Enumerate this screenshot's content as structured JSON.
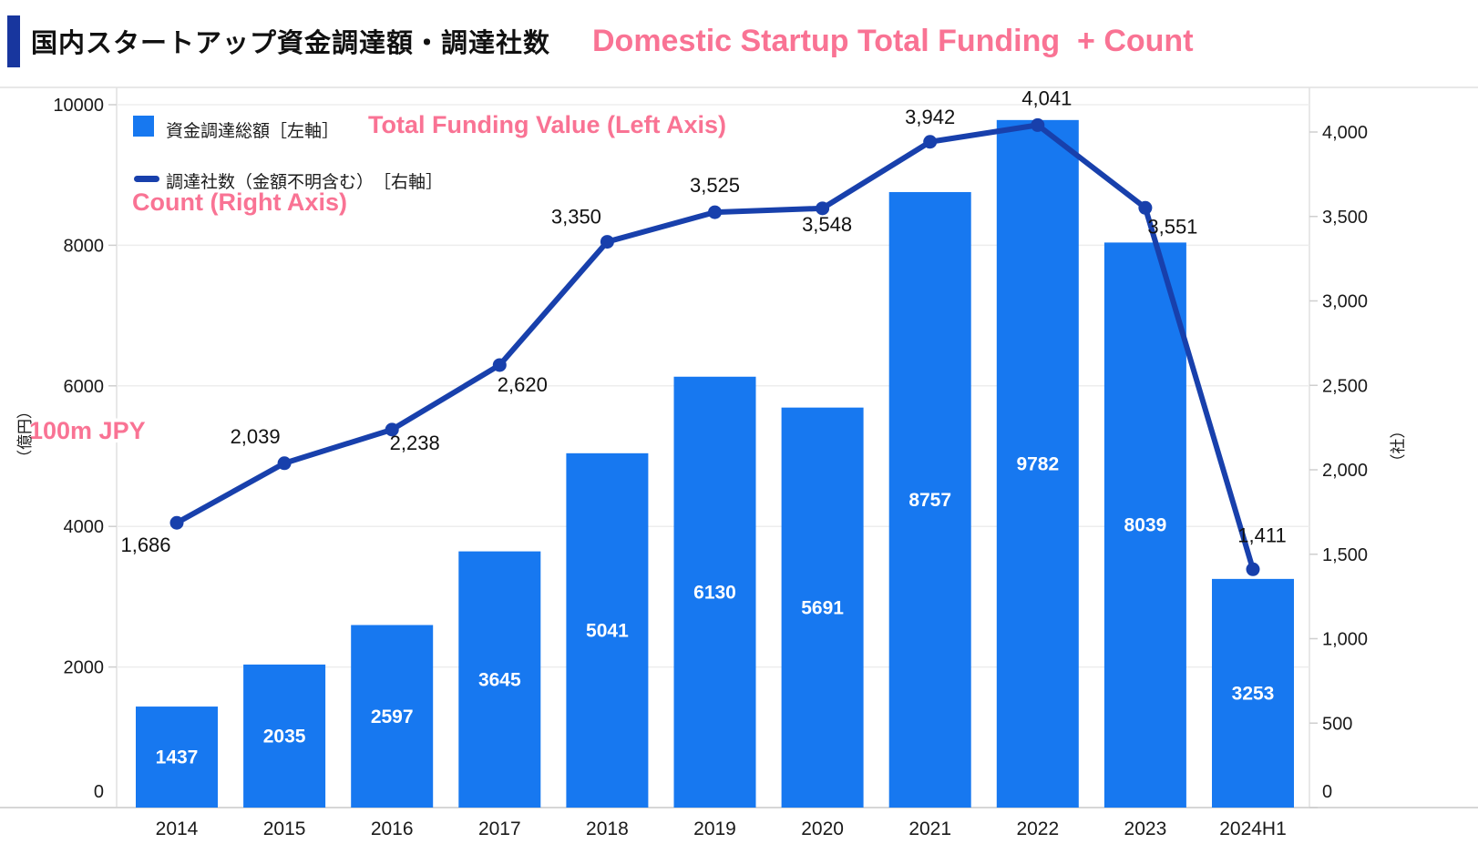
{
  "header": {
    "title_jp": "国内スタートアップ資金調達額・調達社数",
    "title_en": "Domestic Startup Total Funding  + Count"
  },
  "legend": {
    "bar_label_jp": "資金調達総額［左軸］",
    "bar_label_en": "Total Funding Value (Left Axis)",
    "line_label_jp": "調達社数（金額不明含む）　［右軸］",
    "line_label_en": "Count (Right Axis)"
  },
  "axes": {
    "left_unit_jp": "（億円）",
    "left_unit_en": "100m JPY",
    "right_unit_jp": "（社）"
  },
  "colors": {
    "bar": "#1778F0",
    "line": "#1840AC",
    "accent_pink": "#F97394",
    "header_bar": "#18369E",
    "grid": "#ededed",
    "axis_line": "#e0e0e0",
    "baseline": "#d6d6d6",
    "tick": "#cfcfcf",
    "text": "#1a1a1a"
  },
  "chart_data": {
    "type": "bar+line",
    "categories": [
      "2014",
      "2015",
      "2016",
      "2017",
      "2018",
      "2019",
      "2020",
      "2021",
      "2022",
      "2023",
      "2024H1"
    ],
    "series": [
      {
        "name": "資金調達総額［左軸］",
        "type": "bar",
        "axis": "left",
        "values": [
          1437,
          2035,
          2597,
          3645,
          5041,
          6130,
          5691,
          8757,
          9782,
          8039,
          3253
        ]
      },
      {
        "name": "調達社数（金額不明含む）［右軸］",
        "type": "line",
        "axis": "right",
        "values": [
          1686,
          2039,
          2238,
          2620,
          3350,
          3525,
          3548,
          3942,
          4041,
          3551,
          1411
        ],
        "labels": [
          "1,686",
          "2,039",
          "2,238",
          "2,620",
          "3,350",
          "3,525",
          "3,548",
          "3,942",
          "4,041",
          "3,551",
          "1,411"
        ],
        "label_side": [
          "below",
          "above",
          "below",
          "below",
          "above",
          "above",
          "below",
          "above",
          "above",
          "below",
          "above"
        ],
        "label_offsets": [
          [
            -34,
            32
          ],
          [
            -32,
            -22
          ],
          [
            25,
            22
          ],
          [
            25,
            29
          ],
          [
            -34,
            -20
          ],
          [
            0,
            -22
          ],
          [
            5,
            25
          ],
          [
            0,
            -20
          ],
          [
            10,
            -22
          ],
          [
            30,
            28
          ],
          [
            10,
            -30
          ]
        ]
      }
    ],
    "left_axis": {
      "min": 0,
      "max": 10000,
      "ticks": [
        0,
        2000,
        4000,
        6000,
        8000,
        10000
      ],
      "tick_labels": [
        "0",
        "2000",
        "4000",
        "6000",
        "8000",
        "10000"
      ]
    },
    "right_axis": {
      "min": 0,
      "max": 4000,
      "ticks": [
        0,
        500,
        1000,
        1500,
        2000,
        2500,
        3000,
        3500,
        4000
      ],
      "tick_labels": [
        "0",
        "500",
        "1,000",
        "1,500",
        "2,000",
        "2,500",
        "3,000",
        "3,500",
        "4,000"
      ]
    },
    "grid": "horizontal",
    "legend_position": "top-left-inside"
  }
}
